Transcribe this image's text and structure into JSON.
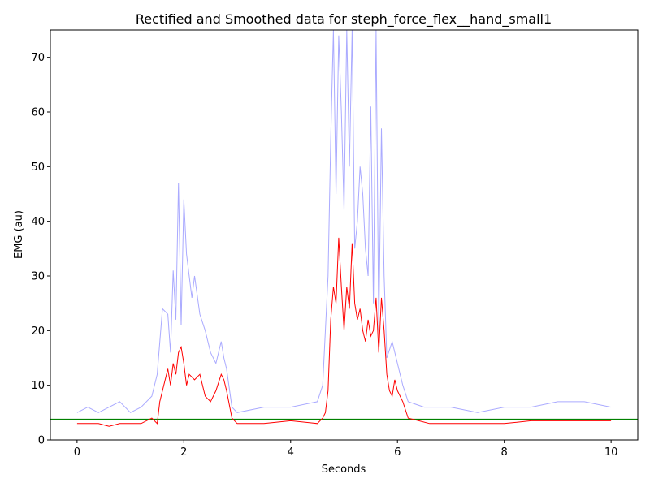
{
  "chart_data": {
    "type": "line",
    "title": "Rectified and Smoothed data for steph_force_flex__hand_small1",
    "xlabel": "Seconds",
    "ylabel": "EMG (au)",
    "xlim": [
      -0.5,
      10.5
    ],
    "ylim": [
      0,
      75
    ],
    "xticks": [
      0,
      2,
      4,
      6,
      8,
      10
    ],
    "yticks": [
      0,
      10,
      20,
      30,
      40,
      50,
      60,
      70
    ],
    "grid": false,
    "legend": "none",
    "colors": {
      "rectified": "#aaaaff",
      "smoothed": "#ff0000",
      "threshold": "#008000"
    },
    "series": [
      {
        "role": "rectified",
        "x": [
          0,
          0.2,
          0.4,
          0.6,
          0.8,
          1.0,
          1.2,
          1.4,
          1.5,
          1.6,
          1.7,
          1.75,
          1.8,
          1.85,
          1.9,
          1.95,
          2.0,
          2.05,
          2.1,
          2.15,
          2.2,
          2.3,
          2.4,
          2.5,
          2.6,
          2.7,
          2.75,
          2.8,
          2.9,
          3.0,
          3.5,
          4.0,
          4.5,
          4.6,
          4.7,
          4.75,
          4.8,
          4.85,
          4.9,
          4.95,
          5.0,
          5.05,
          5.1,
          5.15,
          5.2,
          5.25,
          5.3,
          5.35,
          5.4,
          5.45,
          5.5,
          5.55,
          5.6,
          5.65,
          5.7,
          5.75,
          5.8,
          5.9,
          6.0,
          6.1,
          6.2,
          6.5,
          7.0,
          7.5,
          8.0,
          8.5,
          9.0,
          9.5,
          10.0
        ],
        "y": [
          5,
          6,
          5,
          6,
          7,
          5,
          6,
          8,
          12,
          24,
          23,
          16,
          31,
          22,
          47,
          21,
          44,
          34,
          30,
          26,
          30,
          23,
          20,
          16,
          14,
          18,
          15,
          13,
          6,
          5,
          6,
          6,
          7,
          10,
          30,
          55,
          75,
          45,
          74,
          60,
          42,
          75,
          50,
          75,
          35,
          40,
          50,
          45,
          35,
          30,
          61,
          25,
          75,
          20,
          57,
          30,
          15,
          18,
          14,
          10,
          7,
          6,
          6,
          5,
          6,
          6,
          7,
          7,
          6
        ]
      },
      {
        "role": "smoothed",
        "x": [
          0,
          0.2,
          0.4,
          0.6,
          0.8,
          1.0,
          1.2,
          1.4,
          1.5,
          1.55,
          1.6,
          1.7,
          1.75,
          1.8,
          1.85,
          1.9,
          1.95,
          2.0,
          2.05,
          2.1,
          2.2,
          2.3,
          2.4,
          2.5,
          2.6,
          2.7,
          2.75,
          2.8,
          2.9,
          3.0,
          3.2,
          3.5,
          4.0,
          4.5,
          4.6,
          4.65,
          4.7,
          4.75,
          4.8,
          4.85,
          4.9,
          4.95,
          5.0,
          5.05,
          5.1,
          5.15,
          5.2,
          5.25,
          5.3,
          5.35,
          5.4,
          5.45,
          5.5,
          5.55,
          5.6,
          5.65,
          5.7,
          5.75,
          5.8,
          5.85,
          5.9,
          5.95,
          6.0,
          6.1,
          6.2,
          6.4,
          6.6,
          7.0,
          7.5,
          8.0,
          8.5,
          9.0,
          9.5,
          10.0
        ],
        "y": [
          3,
          3,
          3,
          2.5,
          3,
          3,
          3,
          4,
          3,
          7,
          9,
          13,
          10,
          14,
          12,
          16,
          17,
          14,
          10,
          12,
          11,
          12,
          8,
          7,
          9,
          12,
          11,
          9,
          4,
          3,
          3,
          3,
          3.5,
          3,
          4,
          5,
          9,
          22,
          28,
          25,
          37,
          28,
          20,
          28,
          24,
          36,
          25,
          22,
          24,
          20,
          18,
          22,
          19,
          20,
          26,
          16,
          26,
          20,
          12,
          9,
          8,
          11,
          9,
          7,
          4,
          3.5,
          3,
          3,
          3,
          3,
          3.5,
          3.5,
          3.5,
          3.5
        ]
      }
    ],
    "threshold": 3.8
  }
}
